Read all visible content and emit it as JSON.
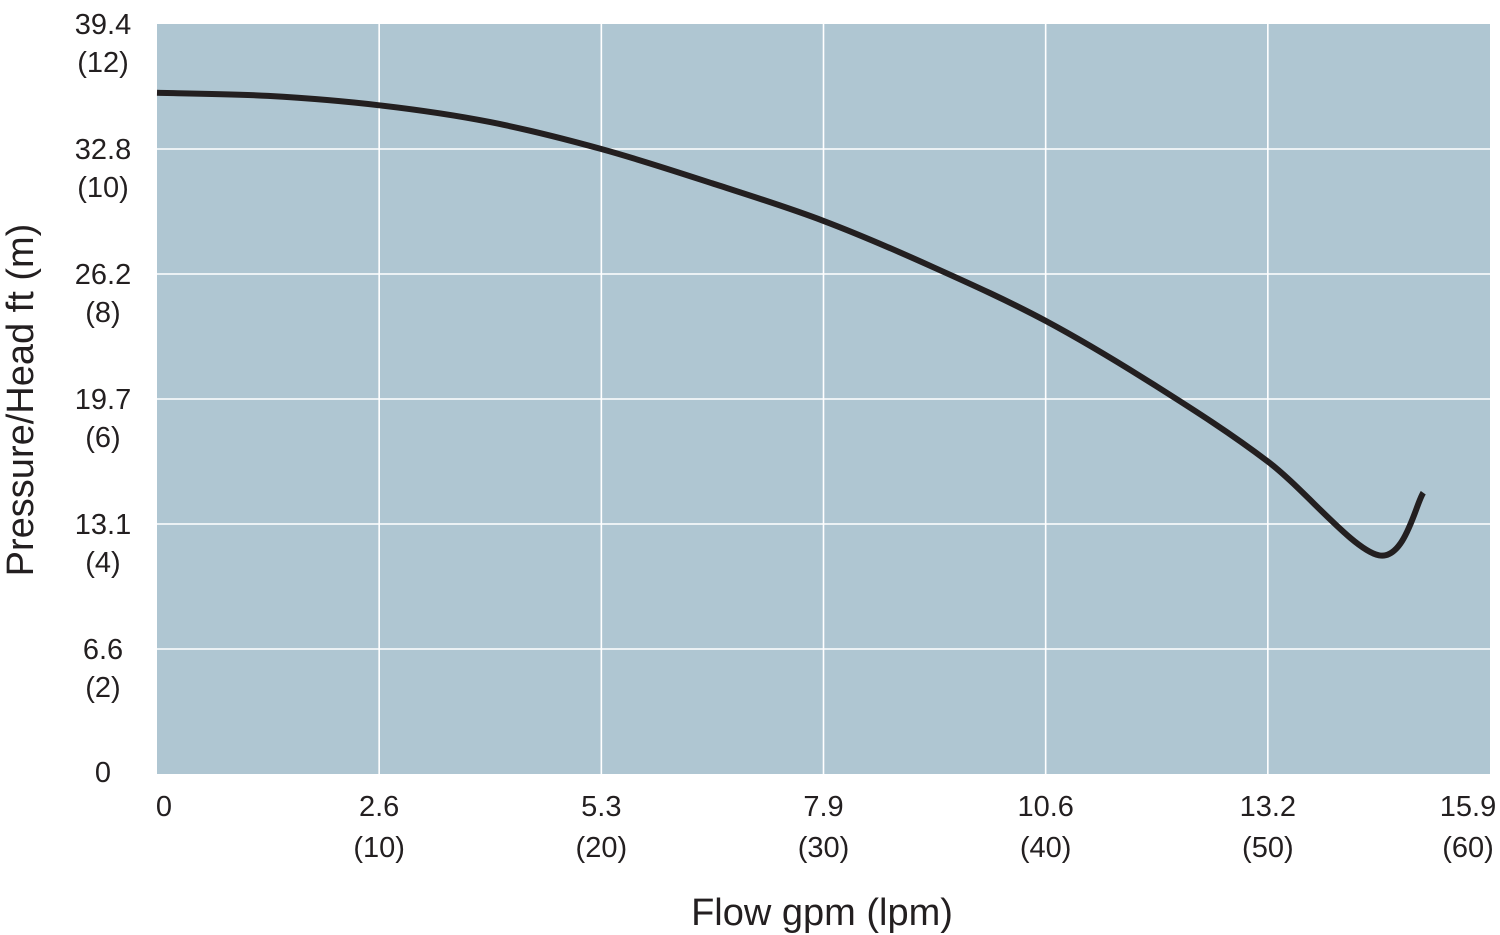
{
  "colors": {
    "plot_background": "#afc6d2",
    "grid": "#ffffff",
    "curve": "#231f20",
    "text": "#231f20"
  },
  "chart_data": {
    "type": "line",
    "xlabel": "Flow gpm (lpm)",
    "ylabel": "Pressure/Head ft (m)",
    "xlim": [
      0,
      60
    ],
    "ylim": [
      0,
      12
    ],
    "x_unit": "lpm",
    "y_unit": "m",
    "grid": true,
    "x_ticks": [
      {
        "value": 0,
        "primary": "0",
        "secondary": ""
      },
      {
        "value": 10,
        "primary": "2.6",
        "secondary": "(10)"
      },
      {
        "value": 20,
        "primary": "5.3",
        "secondary": "(20)"
      },
      {
        "value": 30,
        "primary": "7.9",
        "secondary": "(30)"
      },
      {
        "value": 40,
        "primary": "10.6",
        "secondary": "(40)"
      },
      {
        "value": 50,
        "primary": "13.2",
        "secondary": "(50)"
      },
      {
        "value": 60,
        "primary": "15.9",
        "secondary": "(60)"
      }
    ],
    "y_ticks": [
      {
        "value": 0,
        "primary": "0",
        "secondary": ""
      },
      {
        "value": 2,
        "primary": "6.6",
        "secondary": "(2)"
      },
      {
        "value": 4,
        "primary": "13.1",
        "secondary": "(4)"
      },
      {
        "value": 6,
        "primary": "19.7",
        "secondary": "(6)"
      },
      {
        "value": 8,
        "primary": "26.2",
        "secondary": "(8)"
      },
      {
        "value": 10,
        "primary": "32.8",
        "secondary": "(10)"
      },
      {
        "value": 12,
        "primary": "39.4",
        "secondary": "(12)"
      }
    ],
    "series": [
      {
        "x": [
          0,
          5,
          10,
          15,
          20,
          25,
          30,
          35,
          40,
          45,
          50,
          55,
          57
        ],
        "y": [
          10.9,
          10.85,
          10.7,
          10.43,
          10.0,
          9.45,
          8.85,
          8.1,
          7.25,
          6.2,
          5.0,
          3.5,
          4.5
        ]
      }
    ]
  }
}
